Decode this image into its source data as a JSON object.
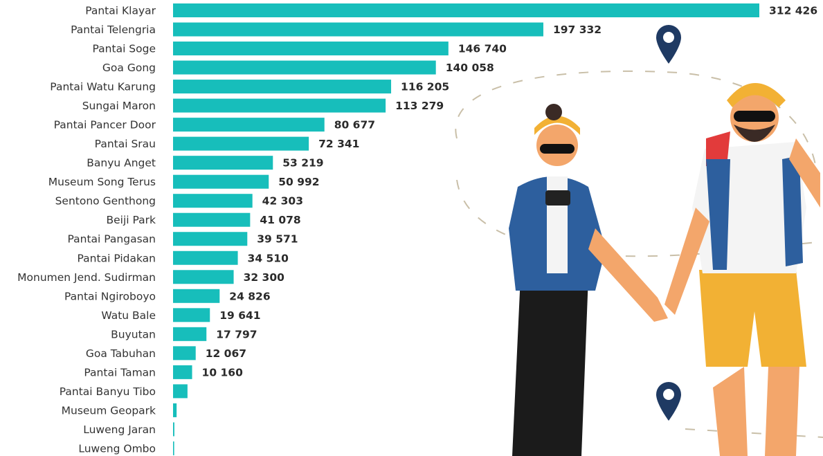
{
  "chart_data": {
    "type": "bar",
    "orientation": "horizontal",
    "color": "#17bebb",
    "xlim": [
      0,
      312426
    ],
    "categories": [
      "Pantai Klayar",
      "Pantai Telengria",
      "Pantai Soge",
      "Goa Gong",
      "Pantai Watu Karung",
      "Sungai Maron",
      "Pantai Pancer Door",
      "Pantai Srau",
      "Banyu Anget",
      "Museum Song Terus",
      "Sentono Genthong",
      "Beiji Park",
      "Pantai Pangasan",
      "Pantai Pidakan",
      "Monumen Jend. Sudirman",
      "Pantai Ngiroboyo",
      "Watu Bale",
      "Buyutan",
      "Goa Tabuhan",
      "Pantai Taman",
      "Pantai Banyu Tibo",
      "Museum Geopark",
      "Luweng Jaran",
      "Luweng Ombo"
    ],
    "values": [
      312426,
      197332,
      146740,
      140058,
      116205,
      113279,
      80677,
      72341,
      53219,
      50992,
      42303,
      41078,
      39571,
      34510,
      32300,
      24826,
      19641,
      17797,
      12067,
      10160,
      7700,
      1900,
      700,
      600
    ],
    "value_labels": [
      "312 426",
      "197 332",
      "146 740",
      "140 058",
      "116 205",
      "113 279",
      "80 677",
      "72 341",
      "53 219",
      "50 992",
      "42 303",
      "41 078",
      "39 571",
      "34 510",
      "32 300",
      "24 826",
      "19 641",
      "17 797",
      "12 067",
      "10 160",
      null,
      null,
      null,
      null
    ]
  }
}
